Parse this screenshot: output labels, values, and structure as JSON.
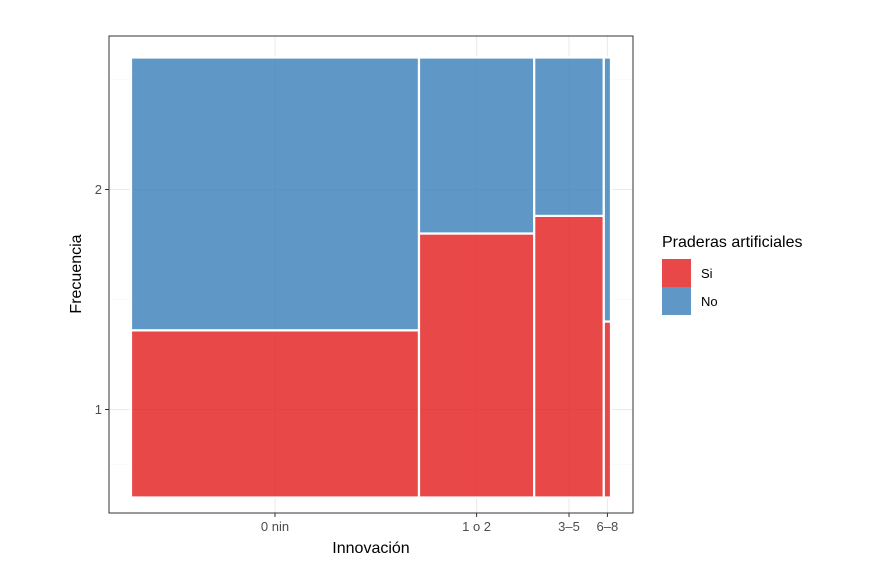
{
  "chart_data": {
    "type": "mosaic",
    "xlabel": "Innovación",
    "ylabel": "Frecuencia",
    "categories": [
      "0 nin",
      "1 o 2",
      "3–5",
      "6–8"
    ],
    "widths": [
      0.6,
      0.24,
      0.145,
      0.015
    ],
    "series": [
      {
        "name": "Si",
        "color": "#e41a1c",
        "values": [
          0.38,
          0.6,
          0.64,
          0.4
        ]
      },
      {
        "name": "No",
        "color": "#377eb8",
        "values": [
          0.62,
          0.4,
          0.36,
          0.6
        ]
      }
    ],
    "ylim": [
      0.5,
      2.6
    ],
    "y_range_drawn": [
      0.6,
      2.6
    ],
    "yticks": [
      1,
      2
    ],
    "ytick_labels": [
      "1",
      "2"
    ],
    "grid": true,
    "legend": {
      "title": "Praderas artificiales",
      "placement": "right",
      "labels": [
        "Si",
        "No"
      ]
    }
  }
}
